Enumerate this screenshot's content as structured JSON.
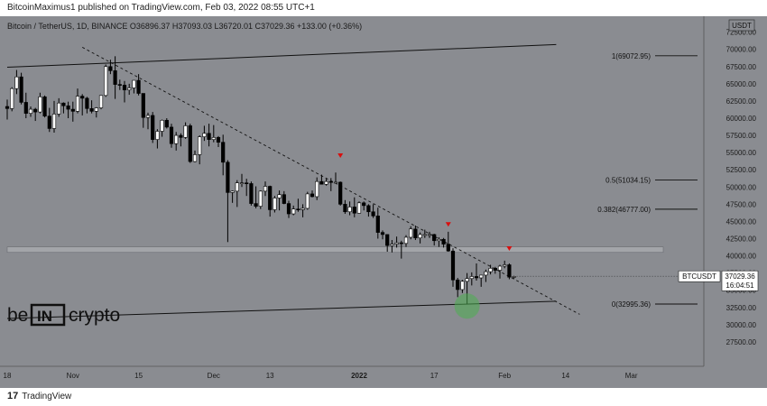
{
  "header": {
    "publisher_text": "BitcoinMaximus1 published on TradingView.com, Feb 03, 2022 08:55 UTC+1"
  },
  "footer": {
    "logo_glyph": "17",
    "brand": "TradingView"
  },
  "colors": {
    "background": "#8a8c91",
    "up_candle": "#ffffff",
    "down_candle": "#000000",
    "marker": "#d80f0f",
    "green_circle": "#4caf50",
    "zone": "#a3a5a9"
  },
  "chart_data": {
    "type": "candlestick",
    "instrument": {
      "title": "Bitcoin / TetherUS, 1D, BINANCE",
      "o_label": "O",
      "o": "36896.37",
      "h_label": "H",
      "h": "37093.03",
      "l_label": "L",
      "l": "36720.01",
      "c_label": "C",
      "c": "37029.36",
      "change": "+133.00 (+0.36%)"
    },
    "currency": "USDT",
    "ylim": [
      25000,
      73500
    ],
    "y_ticks": [
      "72500.00",
      "70000.00",
      "67500.00",
      "65000.00",
      "62500.00",
      "60000.00",
      "57500.00",
      "55000.00",
      "52500.00",
      "50000.00",
      "47500.00",
      "45000.00",
      "42500.00",
      "40000.00",
      "37500.00",
      "35000.00",
      "32500.00",
      "30000.00",
      "27500.00"
    ],
    "x_ticks": [
      "18",
      "Nov",
      "15",
      "Dec",
      "13",
      "2022",
      "17",
      "Feb",
      "14",
      "Mar"
    ],
    "fib_levels": [
      {
        "label": "1(69072.95)",
        "value": 69072.95
      },
      {
        "label": "0.5(51034.15)",
        "value": 51034.15
      },
      {
        "label": "0.382(46777.00)",
        "value": 46777.0
      },
      {
        "label": "0(32995.36)",
        "value": 32995.36
      }
    ],
    "last_price": {
      "symbol": "BTCUSDT",
      "price": "37029.36",
      "countdown": "16:04:51",
      "value": 37029.36
    },
    "support_zone": [
      40500,
      41300
    ],
    "channel_upper": [
      {
        "x": "2021-10-18",
        "y": 67400
      },
      {
        "x": "2022-02-12",
        "y": 70700
      }
    ],
    "channel_lower": [
      {
        "x": "2021-10-18",
        "y": 30900
      },
      {
        "x": "2022-02-12",
        "y": 33400
      }
    ],
    "descending_resistance": [
      {
        "x": "2021-11-03",
        "y": 70300
      },
      {
        "x": "2022-02-17",
        "y": 31500
      }
    ],
    "resistance_markers": [
      {
        "date": "2021-12-28",
        "y": 54500
      },
      {
        "date": "2022-01-20",
        "y": 44500
      },
      {
        "date": "2022-02-02",
        "y": 41000
      }
    ],
    "bounce_point": {
      "date": "2022-01-24",
      "y": 32700
    },
    "candles": [
      [
        "2021-10-18",
        61700,
        62700,
        59800,
        61400
      ],
      [
        "2021-10-19",
        61400,
        64500,
        61000,
        64300
      ],
      [
        "2021-10-20",
        64300,
        67000,
        63500,
        66000
      ],
      [
        "2021-10-21",
        66000,
        66600,
        62000,
        62300
      ],
      [
        "2021-10-22",
        62300,
        63700,
        60000,
        60700
      ],
      [
        "2021-10-23",
        60700,
        61700,
        60200,
        61300
      ],
      [
        "2021-10-24",
        61300,
        61500,
        59600,
        60900
      ],
      [
        "2021-10-25",
        60900,
        63700,
        60700,
        63100
      ],
      [
        "2021-10-26",
        63100,
        63300,
        60100,
        60300
      ],
      [
        "2021-10-27",
        60300,
        61500,
        58000,
        58500
      ],
      [
        "2021-10-28",
        58500,
        62500,
        57900,
        60600
      ],
      [
        "2021-10-29",
        60600,
        62900,
        60200,
        62200
      ],
      [
        "2021-10-30",
        62200,
        62300,
        60700,
        61800
      ],
      [
        "2021-10-31",
        61800,
        62400,
        60000,
        61300
      ],
      [
        "2021-11-01",
        61300,
        62400,
        59500,
        61000
      ],
      [
        "2021-11-02",
        61000,
        64300,
        60700,
        63200
      ],
      [
        "2021-11-03",
        63200,
        63500,
        60400,
        62900
      ],
      [
        "2021-11-04",
        62900,
        63100,
        60700,
        61400
      ],
      [
        "2021-11-05",
        61400,
        62600,
        60700,
        61000
      ],
      [
        "2021-11-06",
        61000,
        61600,
        60100,
        61500
      ],
      [
        "2021-11-07",
        61500,
        63300,
        61300,
        63300
      ],
      [
        "2021-11-08",
        63300,
        67800,
        63100,
        67500
      ],
      [
        "2021-11-09",
        67500,
        68500,
        66400,
        66900
      ],
      [
        "2021-11-10",
        66900,
        69000,
        62800,
        64900
      ],
      [
        "2021-11-11",
        64900,
        65600,
        64100,
        64800
      ],
      [
        "2021-11-12",
        64800,
        65400,
        62300,
        64100
      ],
      [
        "2021-11-13",
        64100,
        65000,
        63400,
        64400
      ],
      [
        "2021-11-14",
        64400,
        65500,
        63600,
        65500
      ],
      [
        "2021-11-15",
        65500,
        66400,
        63300,
        63600
      ],
      [
        "2021-11-16",
        63600,
        63600,
        58600,
        60100
      ],
      [
        "2021-11-17",
        60100,
        60800,
        58400,
        60400
      ],
      [
        "2021-11-18",
        60400,
        60900,
        56400,
        56900
      ],
      [
        "2021-11-19",
        56900,
        58400,
        55600,
        58100
      ],
      [
        "2021-11-20",
        58100,
        59800,
        57300,
        59700
      ],
      [
        "2021-11-21",
        59700,
        60000,
        58500,
        58700
      ],
      [
        "2021-11-22",
        58700,
        59200,
        55700,
        56300
      ],
      [
        "2021-11-23",
        56300,
        58000,
        55300,
        57500
      ],
      [
        "2021-11-24",
        57500,
        57800,
        55900,
        57200
      ],
      [
        "2021-11-25",
        57200,
        59400,
        57000,
        58900
      ],
      [
        "2021-11-26",
        58900,
        59200,
        53500,
        53700
      ],
      [
        "2021-11-27",
        53700,
        55300,
        53600,
        54700
      ],
      [
        "2021-11-28",
        54700,
        57500,
        53300,
        57300
      ],
      [
        "2021-11-29",
        57300,
        58900,
        56700,
        57800
      ],
      [
        "2021-11-30",
        57800,
        59200,
        55900,
        56900
      ],
      [
        "2021-12-01",
        56900,
        59000,
        56500,
        57200
      ],
      [
        "2021-12-02",
        57200,
        57400,
        55800,
        56500
      ],
      [
        "2021-12-03",
        56500,
        57600,
        51700,
        53600
      ],
      [
        "2021-12-04",
        53600,
        53900,
        42000,
        49200
      ],
      [
        "2021-12-05",
        49200,
        49500,
        47700,
        49400
      ],
      [
        "2021-12-06",
        49400,
        51000,
        47100,
        50600
      ],
      [
        "2021-12-07",
        50600,
        51900,
        50000,
        50600
      ],
      [
        "2021-12-08",
        50600,
        51200,
        48700,
        50500
      ],
      [
        "2021-12-09",
        50500,
        50800,
        47300,
        47600
      ],
      [
        "2021-12-10",
        47600,
        50100,
        46900,
        47200
      ],
      [
        "2021-12-11",
        47200,
        49500,
        46800,
        49400
      ],
      [
        "2021-12-12",
        49400,
        50800,
        48700,
        50100
      ],
      [
        "2021-12-13",
        50100,
        50200,
        45700,
        46700
      ],
      [
        "2021-12-14",
        46700,
        48700,
        46300,
        48400
      ],
      [
        "2021-12-15",
        48400,
        49500,
        46600,
        48900
      ],
      [
        "2021-12-16",
        48900,
        49400,
        47500,
        47600
      ],
      [
        "2021-12-17",
        47600,
        48000,
        45500,
        46100
      ],
      [
        "2021-12-18",
        46100,
        47300,
        45900,
        46800
      ],
      [
        "2021-12-19",
        46800,
        48300,
        46400,
        46700
      ],
      [
        "2021-12-20",
        46700,
        47500,
        45600,
        46900
      ],
      [
        "2021-12-21",
        46900,
        49300,
        46700,
        49000
      ],
      [
        "2021-12-22",
        49000,
        49500,
        48500,
        48600
      ],
      [
        "2021-12-23",
        48600,
        51400,
        48100,
        50800
      ],
      [
        "2021-12-24",
        50800,
        51800,
        50400,
        50400
      ],
      [
        "2021-12-25",
        50400,
        51200,
        50200,
        50800
      ],
      [
        "2021-12-26",
        50800,
        51300,
        49400,
        50700
      ],
      [
        "2021-12-27",
        50700,
        52100,
        50500,
        50700
      ],
      [
        "2021-12-28",
        50700,
        50800,
        47300,
        47500
      ],
      [
        "2021-12-29",
        47500,
        48100,
        46100,
        46400
      ],
      [
        "2021-12-30",
        46400,
        47900,
        45900,
        47100
      ],
      [
        "2021-12-31",
        47100,
        48500,
        45600,
        46200
      ],
      [
        "2022-01-01",
        46200,
        47900,
        46200,
        47700
      ],
      [
        "2022-01-02",
        47700,
        47900,
        46600,
        47300
      ],
      [
        "2022-01-03",
        47300,
        47500,
        45700,
        46400
      ],
      [
        "2022-01-04",
        46400,
        47500,
        45500,
        45800
      ],
      [
        "2022-01-05",
        45800,
        47000,
        42500,
        43400
      ],
      [
        "2022-01-06",
        43400,
        43700,
        42400,
        43100
      ],
      [
        "2022-01-07",
        43100,
        43100,
        40600,
        41500
      ],
      [
        "2022-01-08",
        41500,
        42300,
        40500,
        41700
      ],
      [
        "2022-01-09",
        41700,
        42800,
        41200,
        41900
      ],
      [
        "2022-01-10",
        41900,
        42200,
        39600,
        41800
      ],
      [
        "2022-01-11",
        41800,
        43000,
        41300,
        42700
      ],
      [
        "2022-01-12",
        42700,
        44300,
        42400,
        43900
      ],
      [
        "2022-01-13",
        43900,
        44400,
        42300,
        42600
      ],
      [
        "2022-01-14",
        42600,
        43400,
        41800,
        43100
      ],
      [
        "2022-01-15",
        43100,
        43800,
        42600,
        43100
      ],
      [
        "2022-01-16",
        43100,
        43500,
        42600,
        43100
      ],
      [
        "2022-01-17",
        43100,
        43200,
        41500,
        42200
      ],
      [
        "2022-01-18",
        42200,
        42700,
        41300,
        42400
      ],
      [
        "2022-01-19",
        42400,
        42600,
        41200,
        41700
      ],
      [
        "2022-01-20",
        41700,
        43500,
        40600,
        40700
      ],
      [
        "2022-01-21",
        40700,
        41100,
        35500,
        36500
      ],
      [
        "2022-01-22",
        36500,
        36800,
        34000,
        35100
      ],
      [
        "2022-01-23",
        35100,
        36500,
        34600,
        36300
      ],
      [
        "2022-01-24",
        36300,
        37500,
        33000,
        36700
      ],
      [
        "2022-01-25",
        36700,
        37600,
        35700,
        37000
      ],
      [
        "2022-01-26",
        37000,
        38900,
        36400,
        36800
      ],
      [
        "2022-01-27",
        36800,
        37200,
        35500,
        37200
      ],
      [
        "2022-01-28",
        37200,
        38000,
        36200,
        37700
      ],
      [
        "2022-01-29",
        37700,
        38700,
        37300,
        38200
      ],
      [
        "2022-01-30",
        38200,
        38400,
        37400,
        37900
      ],
      [
        "2022-01-31",
        37900,
        38700,
        36700,
        38500
      ],
      [
        "2022-02-01",
        38500,
        39300,
        38200,
        38700
      ],
      [
        "2022-02-02",
        38700,
        38900,
        36600,
        36900
      ],
      [
        "2022-02-03",
        36900,
        37100,
        36700,
        37000
      ]
    ]
  }
}
